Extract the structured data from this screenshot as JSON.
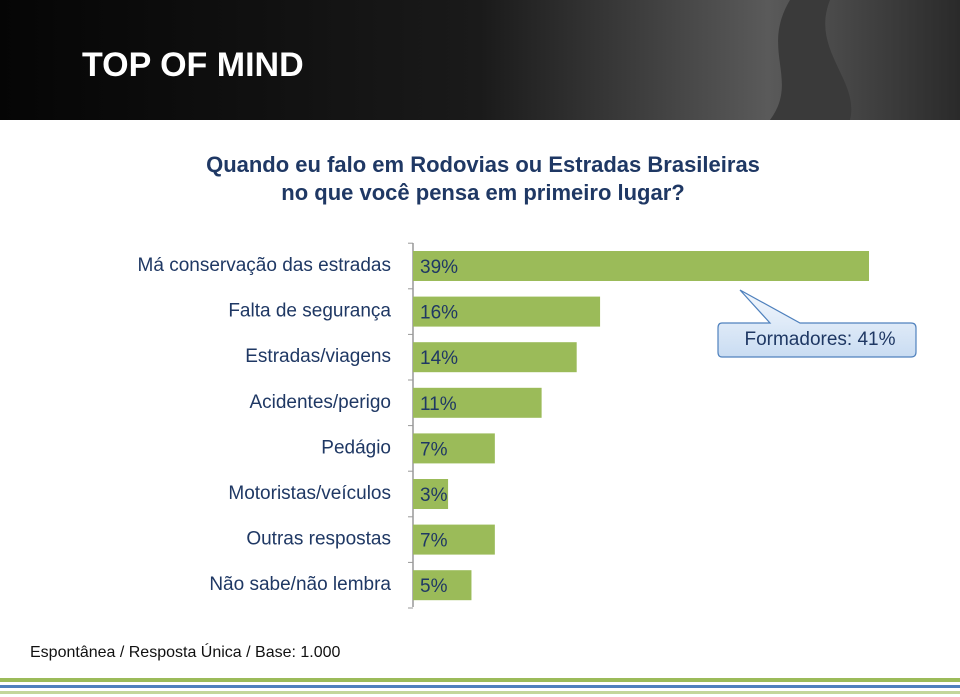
{
  "header": {
    "title": "TOP OF MIND"
  },
  "chart_data": {
    "type": "bar",
    "title": [
      "Quando eu falo em Rodovias ou Estradas Brasileiras",
      "no que você pensa em primeiro lugar?"
    ],
    "categories": [
      "Má conservação das estradas",
      "Falta de segurança",
      "Estradas/viagens",
      "Acidentes/perigo",
      "Pedágio",
      "Motoristas/veículos",
      "Outras respostas",
      "Não sabe/não lembra"
    ],
    "values": [
      39,
      16,
      14,
      11,
      7,
      3,
      7,
      5
    ],
    "value_labels": [
      "39%",
      "16%",
      "14%",
      "11%",
      "7%",
      "3%",
      "7%",
      "5%"
    ],
    "color": "#9bbb59",
    "annotation": "Formadores: 41%"
  },
  "footnote": "Espontânea / Resposta Única / Base: 1.000"
}
